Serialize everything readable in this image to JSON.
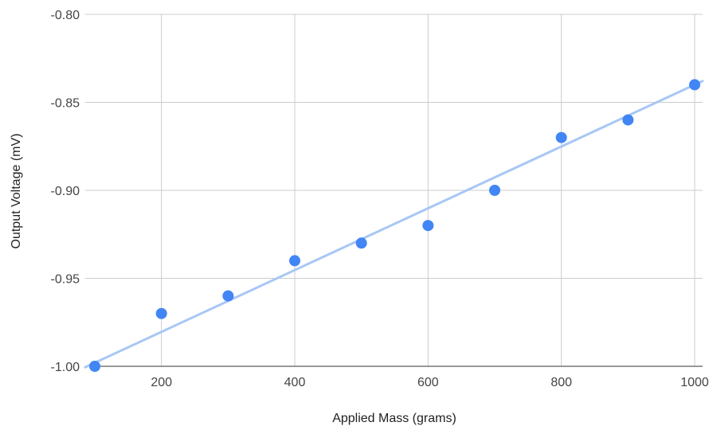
{
  "chart_data": {
    "type": "scatter",
    "title": "",
    "xlabel": "Applied Mass (grams)",
    "ylabel": "Output Voltage (mV)",
    "xlim": [
      100,
      1000
    ],
    "ylim": [
      -1.0,
      -0.8
    ],
    "x_ticks": [
      200,
      400,
      600,
      800,
      1000
    ],
    "y_ticks": [
      -1.0,
      -0.95,
      -0.9,
      -0.85,
      -0.8
    ],
    "x_tick_labels": [
      "200",
      "400",
      "600",
      "800",
      "1000"
    ],
    "y_tick_labels": [
      "-1.00",
      "-0.95",
      "-0.90",
      "-0.85",
      "-0.80"
    ],
    "grid": true,
    "series": [
      {
        "x": [
          100,
          200,
          300,
          400,
          500,
          600,
          700,
          800,
          900,
          1000
        ],
        "y": [
          -1.0,
          -0.97,
          -0.96,
          -0.94,
          -0.93,
          -0.92,
          -0.9,
          -0.87,
          -0.86,
          -0.84
        ],
        "color": "#4285f4"
      }
    ],
    "trendline": {
      "type": "linear",
      "color": "#a8c7f5",
      "x": [
        100,
        1000
      ],
      "y": [
        -0.998,
        -0.84
      ]
    }
  }
}
